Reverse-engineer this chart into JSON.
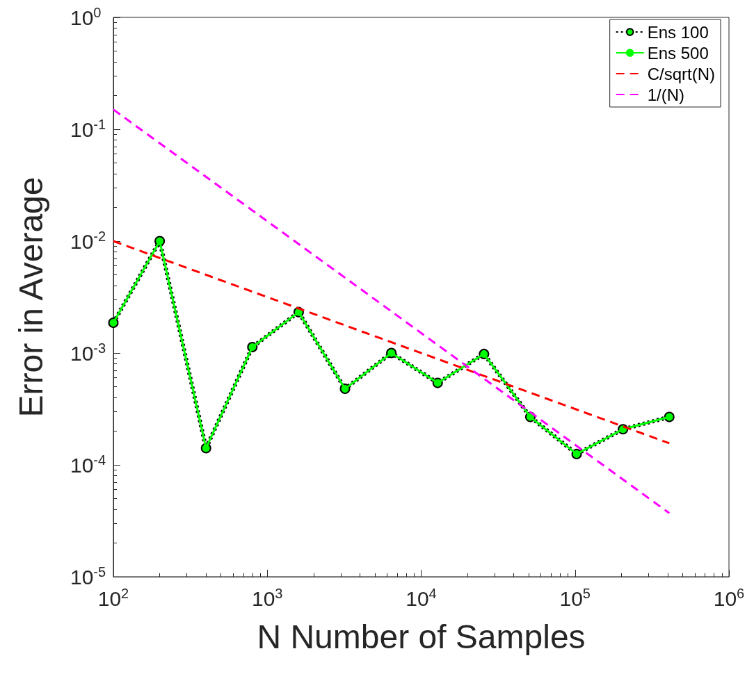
{
  "chart_data": {
    "type": "line",
    "xlabel": "N Number of Samples",
    "ylabel": "Error in Average",
    "log": "xy",
    "grid": false,
    "legend": "top right",
    "xlim": [
      100,
      1000000
    ],
    "xticks": [
      {
        "value": 100,
        "label": "10$^{2}$"
      },
      {
        "value": 1000,
        "label": "10$^{3}$"
      },
      {
        "value": 10000,
        "label": "10$^{4}$"
      },
      {
        "value": 100000,
        "label": "10$^{5}$"
      },
      {
        "value": 1000000,
        "label": "10$^{6}$"
      }
    ],
    "ylim": [
      1e-05,
      1
    ],
    "yticks": [
      {
        "value": 1e-05,
        "label": "10$^{-5}$"
      },
      {
        "value": 0.0001,
        "label": "10$^{-4}$"
      },
      {
        "value": 0.001,
        "label": "10$^{-3}$"
      },
      {
        "value": 0.01,
        "label": "10$^{-2}$"
      },
      {
        "value": 0.1,
        "label": "10$^{-1}$"
      },
      {
        "value": 1,
        "label": "10$^{0}$"
      }
    ],
    "series": [
      {
        "name": "Ens 100",
        "color": "#000000",
        "line_style": "dotted",
        "marker": "circle",
        "x": [
          100,
          200,
          400,
          800,
          1600,
          3200,
          6400,
          12800,
          25600,
          51200,
          102400,
          204800,
          409600
        ],
        "values": [
          0.00186,
          0.01,
          0.000141,
          0.00113,
          0.00232,
          0.000478,
          0.001,
          0.00054,
          0.00098,
          0.000268,
          0.000125,
          0.000208,
          0.000268
        ]
      },
      {
        "name": "Ens 500",
        "color": "#00ff00",
        "line_style": "solid",
        "marker": "circle",
        "x": [
          100,
          200,
          400,
          800,
          1600,
          3200,
          6400,
          12800,
          25600,
          51200,
          102400,
          204800,
          409600
        ],
        "values": [
          0.00186,
          0.01,
          0.000141,
          0.00113,
          0.00232,
          0.000478,
          0.001,
          0.00054,
          0.00098,
          0.000268,
          0.000125,
          0.000208,
          0.000268
        ]
      },
      {
        "name": "C/sqrt(N)",
        "color": "#ff0000",
        "line_style": "dashed",
        "marker": "none",
        "x": [
          100,
          409600
        ],
        "values": [
          0.01,
          0.000156
        ]
      },
      {
        "name": "1/(N)",
        "color": "#ff00ff",
        "line_style": "dashed",
        "marker": "none",
        "x": [
          100,
          409600
        ],
        "values": [
          0.15,
          3.7e-05
        ]
      }
    ]
  }
}
